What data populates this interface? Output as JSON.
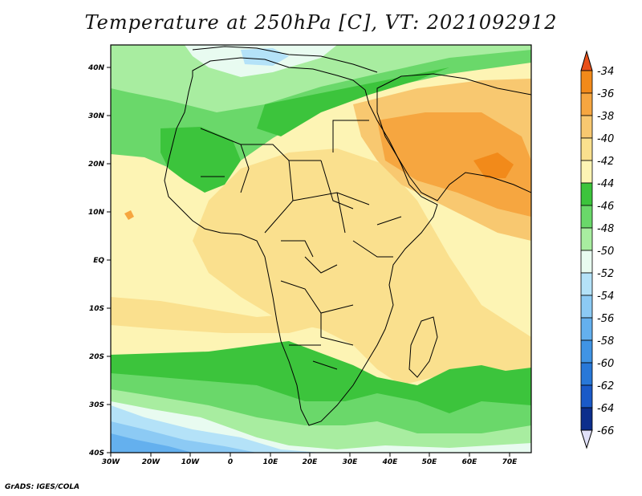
{
  "title": "Temperature at 250hPa [C], VT: 2021092912",
  "credit": "GrADS: IGES/COLA",
  "axes": {
    "lon_labels": [
      "30W",
      "20W",
      "10W",
      "0",
      "10E",
      "20E",
      "30E",
      "40E",
      "50E",
      "60E",
      "70E"
    ],
    "lat_labels": [
      "40N",
      "30N",
      "20N",
      "10N",
      "EQ",
      "10S",
      "20S",
      "30S",
      "40S"
    ]
  },
  "colorbar": {
    "labels": [
      "-34",
      "-36",
      "-38",
      "-40",
      "-42",
      "-44",
      "-46",
      "-48",
      "-50",
      "-52",
      "-54",
      "-56",
      "-58",
      "-60",
      "-62",
      "-64",
      "-66"
    ],
    "colors": [
      "#e8501a",
      "#f28a1a",
      "#f6a640",
      "#f8c870",
      "#fae08e",
      "#fdf4b4",
      "#3cc43c",
      "#6ad86a",
      "#a8eda0",
      "#e8fbf0",
      "#b4e2f8",
      "#8ccaf4",
      "#64b0ee",
      "#4094e4",
      "#2878d8",
      "#1a5ac8",
      "#0c2e8c"
    ]
  },
  "map_colors": {
    "ocean_pale": "#fdf4b4",
    "light_orange": "#fae08e",
    "orange": "#f8c870",
    "deep_orange": "#f6a640",
    "hot_orange": "#f28a1a",
    "green": "#3cc43c",
    "mid_green": "#6ad86a",
    "light_green": "#a8eda0",
    "pale_cyan": "#e8fbf0",
    "light_blue": "#b4e2f8",
    "blue": "#8ccaf4",
    "deep_blue": "#64b0ee"
  }
}
